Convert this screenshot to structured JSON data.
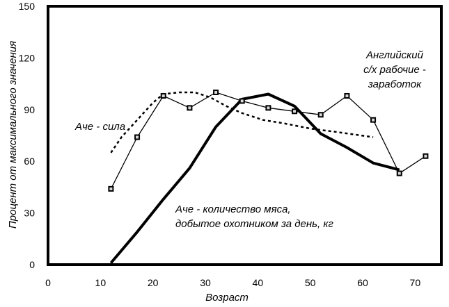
{
  "chart_data": {
    "type": "line",
    "title": "",
    "xlabel": "Возраст",
    "ylabel": "Процент от максимального значения",
    "xlim": [
      0,
      75
    ],
    "ylim": [
      0,
      150
    ],
    "x_ticks": [
      0,
      10,
      20,
      30,
      40,
      50,
      60,
      70
    ],
    "y_ticks": [
      0,
      30,
      60,
      90,
      120,
      150
    ],
    "series": [
      {
        "name": "Английский с/х рабочие - заработок",
        "label_lines": [
          "Английский",
          "с/х рабочие -",
          "заработок"
        ],
        "style": "thin-markers",
        "x": [
          12,
          17,
          22,
          27,
          32,
          37,
          42,
          47,
          52,
          57,
          62,
          67,
          72
        ],
        "y": [
          44,
          74,
          98,
          91,
          100,
          95,
          91,
          89,
          87,
          98,
          84,
          53,
          63
        ]
      },
      {
        "name": "Аче - сила",
        "label_lines": [
          "Аче - сила"
        ],
        "style": "dotted",
        "x": [
          12,
          14,
          17,
          20,
          22,
          25,
          28,
          31,
          34,
          37,
          41,
          45,
          50,
          55,
          62
        ],
        "y": [
          65,
          74,
          84,
          94,
          99,
          100,
          100,
          97,
          92,
          88,
          84,
          82,
          79,
          77,
          74
        ]
      },
      {
        "name": "Аче - количество мяса, добытое охотником за день, кг",
        "label_lines": [
          "Аче - количество мяса,",
          "добытое охотником за день, кг"
        ],
        "style": "thick",
        "x": [
          12,
          17,
          22,
          27,
          32,
          37,
          42,
          47,
          52,
          57,
          62,
          67
        ],
        "y": [
          1,
          19,
          38,
          56,
          80,
          96,
          99,
          92,
          76,
          68,
          59,
          55
        ]
      }
    ]
  }
}
